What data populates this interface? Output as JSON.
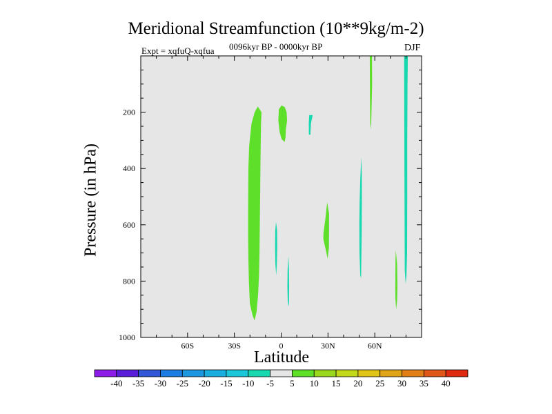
{
  "chart_data": {
    "type": "heatmap",
    "title": "Meridional Streamfunction (10**9kg/m-2)",
    "subtitle_left": "Expt = xqfuQ-xqfua",
    "subtitle_center": "0096kyr BP - 0000kyr BP",
    "subtitle_right": "DJF",
    "xlabel": "Latitude",
    "ylabel": "Pressure (in hPa)",
    "xlim": [
      -90,
      90
    ],
    "ylim": [
      1000,
      0
    ],
    "x_ticks": [
      {
        "value": -60,
        "label": "60S"
      },
      {
        "value": -30,
        "label": "30S"
      },
      {
        "value": 0,
        "label": "0"
      },
      {
        "value": 30,
        "label": "30N"
      },
      {
        "value": 60,
        "label": "60N"
      }
    ],
    "y_ticks": [
      {
        "value": 200,
        "label": "200"
      },
      {
        "value": 400,
        "label": "400"
      },
      {
        "value": 600,
        "label": "600"
      },
      {
        "value": 800,
        "label": "800"
      },
      {
        "value": 1000,
        "label": "1000"
      }
    ],
    "background_color": "#e6e6e6",
    "contour_levels": [
      "-40",
      "-35",
      "-30",
      "-25",
      "-20",
      "-15",
      "-10",
      "-5",
      "5",
      "10",
      "15",
      "20",
      "25",
      "30",
      "35",
      "40"
    ],
    "colorbar_colors": [
      "#8c1ce6",
      "#5a1ed8",
      "#3258d6",
      "#1c7ee0",
      "#1e96e0",
      "#1aaee0",
      "#1ac6d8",
      "#18d8b0",
      "#e6e6e6",
      "#5ee02a",
      "#9ad81e",
      "#c2d81a",
      "#e0c418",
      "#e0a418",
      "#e07e18",
      "#e05818",
      "#e02a10"
    ],
    "regions": [
      {
        "name": "sh-subtropical-positive",
        "level": "5",
        "color": "#5ee02a",
        "points": [
          [
            -12.6,
            200
          ],
          [
            -15,
            180
          ],
          [
            -17,
            200
          ],
          [
            -19,
            240
          ],
          [
            -20.5,
            320
          ],
          [
            -21,
            400
          ],
          [
            -21.1,
            480
          ],
          [
            -21.2,
            560
          ],
          [
            -21.2,
            640
          ],
          [
            -21,
            720
          ],
          [
            -20.7,
            800
          ],
          [
            -20.1,
            880
          ],
          [
            -18.4,
            920
          ],
          [
            -17.1,
            940
          ],
          [
            -15.8,
            910
          ],
          [
            -14.8,
            850
          ],
          [
            -14.2,
            780
          ],
          [
            -13.9,
            700
          ],
          [
            -13.7,
            600
          ],
          [
            -13.5,
            500
          ],
          [
            -13.3,
            400
          ],
          [
            -13.1,
            300
          ],
          [
            -12.9,
            240
          ]
        ]
      },
      {
        "name": "equatorial-upper-positive",
        "level": "5",
        "color": "#5ee02a",
        "points": [
          [
            -1.5,
            190
          ],
          [
            0.2,
            176
          ],
          [
            2.3,
            182
          ],
          [
            3.5,
            200
          ],
          [
            3.8,
            230
          ],
          [
            3.0,
            260
          ],
          [
            2.8,
            290
          ],
          [
            2.2,
            306
          ],
          [
            0.3,
            296
          ],
          [
            -1.0,
            270
          ],
          [
            -1.8,
            230
          ]
        ]
      },
      {
        "name": "nh-subtropical-positive",
        "level": "5",
        "color": "#5ee02a",
        "points": [
          [
            29.5,
            520
          ],
          [
            30.7,
            560
          ],
          [
            30.7,
            620
          ],
          [
            30.6,
            680
          ],
          [
            29.8,
            720
          ],
          [
            28.2,
            680
          ],
          [
            27.0,
            650
          ],
          [
            27.1,
            630
          ],
          [
            28.3,
            580
          ]
        ]
      },
      {
        "name": "nh-highlat-upper-positive",
        "level": "5",
        "color": "#5ee02a",
        "points": [
          [
            56.8,
            0
          ],
          [
            58.2,
            0
          ],
          [
            58.3,
            100
          ],
          [
            57.9,
            200
          ],
          [
            57.6,
            260
          ],
          [
            57.1,
            240
          ],
          [
            56.9,
            150
          ]
        ]
      },
      {
        "name": "nh-highlat-lower-positive",
        "level": "5",
        "color": "#5ee02a",
        "points": [
          [
            73.5,
            690
          ],
          [
            74.3,
            740
          ],
          [
            74.5,
            820
          ],
          [
            74.3,
            870
          ],
          [
            73.7,
            900
          ],
          [
            73.2,
            860
          ],
          [
            73.2,
            780
          ],
          [
            73.3,
            720
          ]
        ]
      },
      {
        "name": "equatorial-mid-negative",
        "level": "-5",
        "color": "#18d8b0",
        "points": [
          [
            -3.3,
            590
          ],
          [
            -2.6,
            620
          ],
          [
            -2.5,
            680
          ],
          [
            -2.8,
            740
          ],
          [
            -3.2,
            780
          ],
          [
            -3.7,
            740
          ],
          [
            -3.9,
            680
          ],
          [
            -3.8,
            620
          ]
        ]
      },
      {
        "name": "equatorial-lower-negative",
        "level": "-5",
        "color": "#18d8b0",
        "points": [
          [
            4.7,
            710
          ],
          [
            5.0,
            760
          ],
          [
            5.1,
            820
          ],
          [
            5.0,
            880
          ],
          [
            4.6,
            890
          ],
          [
            4.2,
            870
          ],
          [
            4.0,
            820
          ],
          [
            4.1,
            760
          ]
        ]
      },
      {
        "name": "nh-upper-small-negative",
        "level": "-5",
        "color": "#18d8b0",
        "points": [
          [
            18.0,
            210
          ],
          [
            20.2,
            210
          ],
          [
            19.1,
            240
          ],
          [
            18.7,
            280
          ],
          [
            17.8,
            280
          ],
          [
            17.7,
            240
          ]
        ]
      },
      {
        "name": "nh-midlat-negative",
        "level": "-5",
        "color": "#18d8b0",
        "points": [
          [
            51.3,
            360
          ],
          [
            51.7,
            420
          ],
          [
            51.7,
            520
          ],
          [
            51.6,
            620
          ],
          [
            51.4,
            720
          ],
          [
            51.2,
            790
          ],
          [
            50.7,
            780
          ],
          [
            50.2,
            700
          ],
          [
            50.1,
            600
          ],
          [
            50.3,
            520
          ],
          [
            50.7,
            440
          ]
        ]
      },
      {
        "name": "nh-polar-negative",
        "level": "-5",
        "color": "#18d8b0",
        "points": [
          [
            78.8,
            0
          ],
          [
            81.2,
            0
          ],
          [
            81.0,
            100
          ],
          [
            80.8,
            300
          ],
          [
            80.8,
            500
          ],
          [
            80.7,
            700
          ],
          [
            80.3,
            780
          ],
          [
            79.8,
            810
          ],
          [
            79.2,
            760
          ],
          [
            79.1,
            600
          ],
          [
            79.0,
            400
          ],
          [
            78.9,
            200
          ]
        ]
      }
    ]
  }
}
